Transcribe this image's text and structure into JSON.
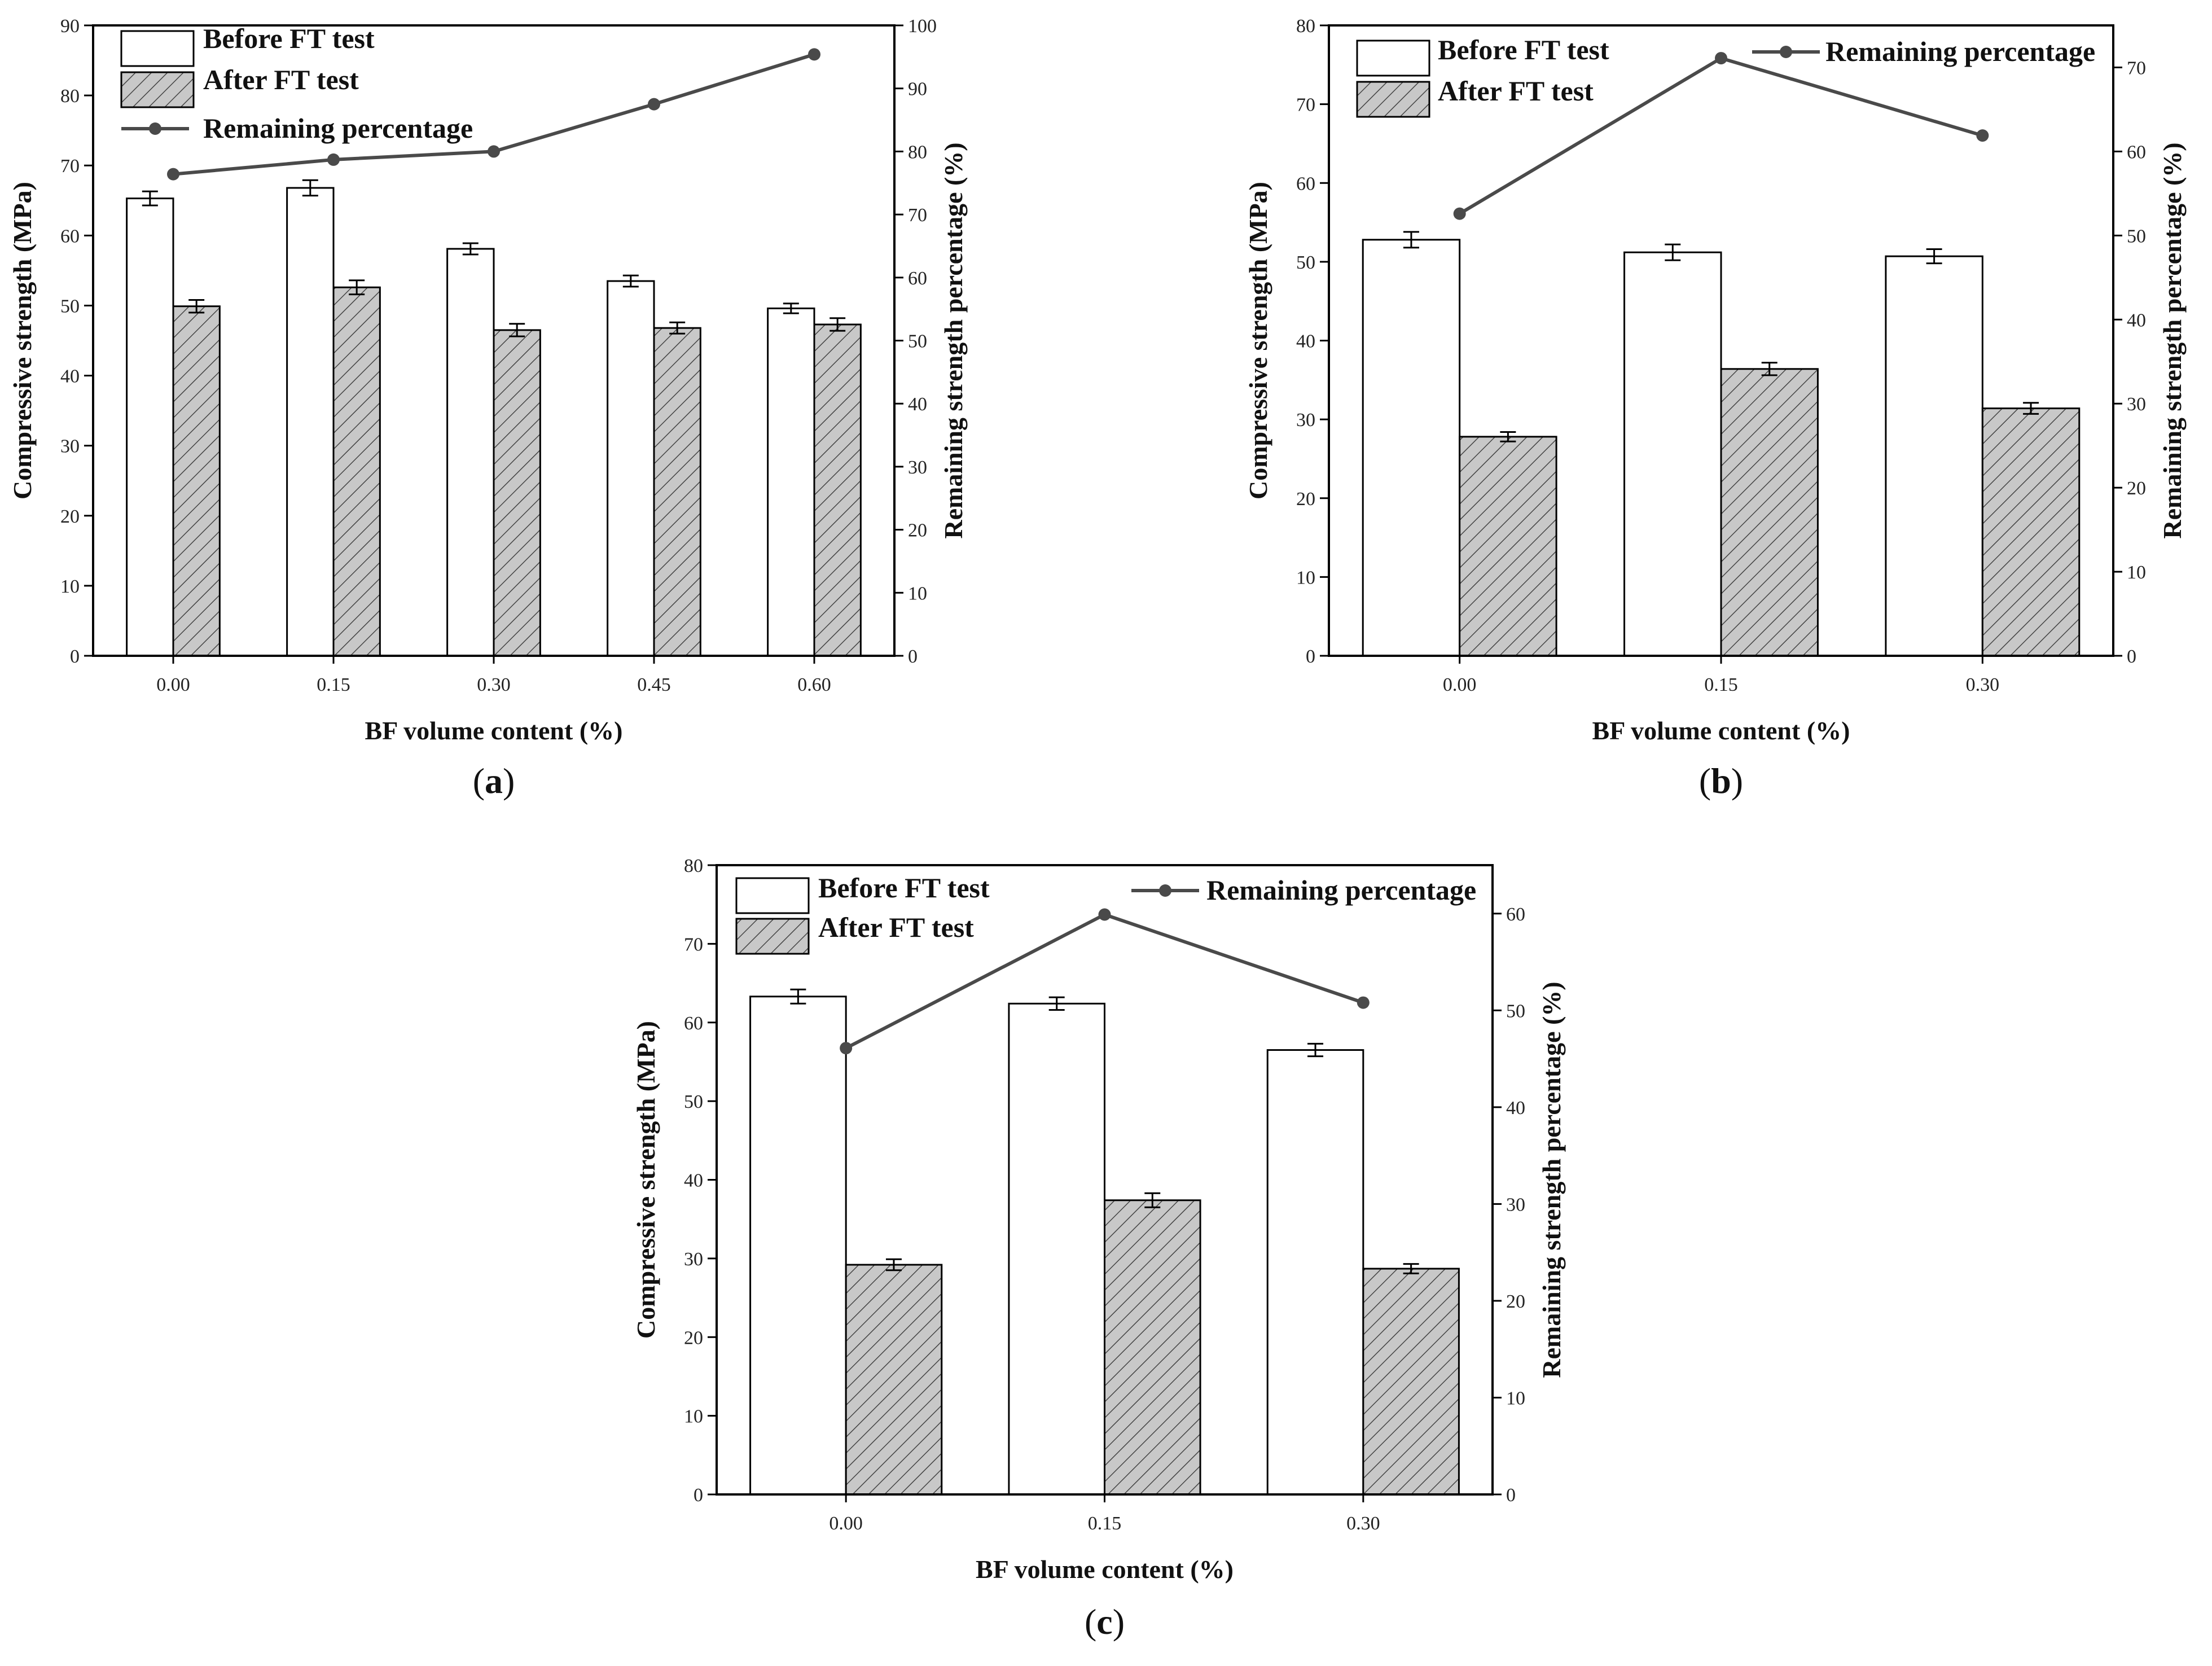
{
  "chart_data": [
    {
      "type": "bar",
      "panel": "(a)",
      "panel_letter": "a",
      "categories": [
        "0.00",
        "0.15",
        "0.30",
        "0.45",
        "0.60"
      ],
      "series": [
        {
          "name": "Before FT test",
          "values": [
            65.3,
            66.8,
            58.1,
            53.5,
            49.6
          ],
          "errors": [
            1.0,
            1.1,
            0.8,
            0.8,
            0.7
          ]
        },
        {
          "name": "After FT test",
          "values": [
            49.9,
            52.6,
            46.5,
            46.8,
            47.3
          ],
          "errors": [
            0.9,
            1.0,
            0.9,
            0.8,
            0.9
          ]
        }
      ],
      "line": {
        "name": "Remaining percentage",
        "values": [
          76.4,
          78.7,
          80.0,
          87.5,
          95.4
        ]
      },
      "xlabel": "BF volume content (%)",
      "ylabel": "Compressive strength (MPa)",
      "y2label": "Remaining strength percentage (%)",
      "ylim": [
        0,
        90
      ],
      "y2lim": [
        0,
        100
      ],
      "yticks": [
        0,
        10,
        20,
        30,
        40,
        50,
        60,
        70,
        80,
        90
      ],
      "y2ticks": [
        0,
        10,
        20,
        30,
        40,
        50,
        60,
        70,
        80,
        90,
        100
      ],
      "legend": "top-left"
    },
    {
      "type": "bar",
      "panel": "(b)",
      "panel_letter": "b",
      "categories": [
        "0.00",
        "0.15",
        "0.30"
      ],
      "series": [
        {
          "name": "Before FT test",
          "values": [
            52.8,
            51.2,
            50.7
          ],
          "errors": [
            1.0,
            1.0,
            0.9
          ]
        },
        {
          "name": "After FT test",
          "values": [
            27.8,
            36.4,
            31.4
          ],
          "errors": [
            0.6,
            0.8,
            0.7
          ]
        }
      ],
      "line": {
        "name": "Remaining percentage",
        "values": [
          52.6,
          71.1,
          61.9
        ]
      },
      "xlabel": "BF volume content (%)",
      "ylabel": "Compressive strength (MPa)",
      "y2label": "Remaining strength percentage (%)",
      "ylim": [
        0,
        80
      ],
      "y2lim": [
        0,
        75
      ],
      "yticks": [
        0,
        10,
        20,
        30,
        40,
        50,
        60,
        70,
        80
      ],
      "y2ticks": [
        0,
        10,
        20,
        30,
        40,
        50,
        60,
        70
      ],
      "legend": "top"
    },
    {
      "type": "bar",
      "panel": "(c)",
      "panel_letter": "c",
      "categories": [
        "0.00",
        "0.15",
        "0.30"
      ],
      "series": [
        {
          "name": "Before FT test",
          "values": [
            63.3,
            62.4,
            56.5
          ],
          "errors": [
            0.9,
            0.8,
            0.8
          ]
        },
        {
          "name": "After FT test",
          "values": [
            29.2,
            37.4,
            28.7
          ],
          "errors": [
            0.7,
            0.9,
            0.6
          ]
        }
      ],
      "line": {
        "name": "Remaining percentage",
        "values": [
          46.1,
          59.9,
          50.8
        ]
      },
      "xlabel": "BF volume content (%)",
      "ylabel": "Compressive strength (MPa)",
      "y2label": "Remaining strength percentage (%)",
      "ylim": [
        0,
        80
      ],
      "y2lim": [
        0,
        65
      ],
      "yticks": [
        0,
        10,
        20,
        30,
        40,
        50,
        60,
        70,
        80
      ],
      "y2ticks": [
        0,
        10,
        20,
        30,
        40,
        50,
        60
      ],
      "legend": "top"
    }
  ],
  "colors": {
    "before_fill": "#ffffff",
    "after_fill": "#c8c8c8",
    "line": "#4a4a4a",
    "axis": "#000000"
  }
}
